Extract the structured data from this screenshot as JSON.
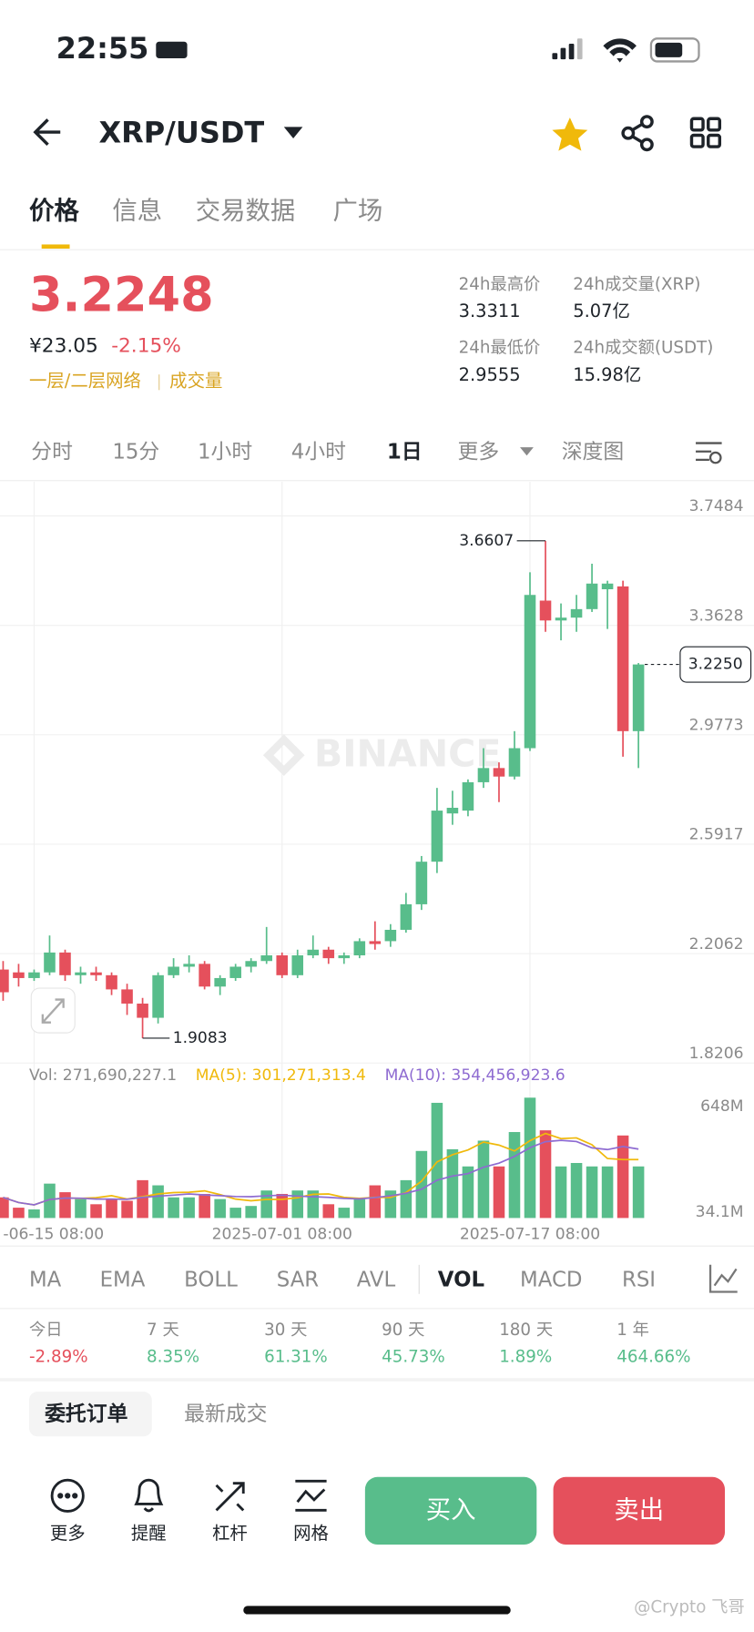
{
  "status_bar": {
    "time": "22:55"
  },
  "header": {
    "pair": "XRP/USDT"
  },
  "tabs": [
    "价格",
    "信息",
    "交易数据",
    "广场"
  ],
  "ticker": {
    "price": "3.2248",
    "cny": "¥23.05",
    "change": "-2.15%",
    "network": "一层/二层网络",
    "volume_link": "成交量"
  },
  "stats": [
    {
      "label": "24h最高价",
      "value": "3.3311"
    },
    {
      "label": "24h成交量(XRP)",
      "value": "5.07亿"
    },
    {
      "label": "24h最低价",
      "value": "2.9555"
    },
    {
      "label": "24h成交额(USDT)",
      "value": "15.98亿"
    }
  ],
  "intervals": [
    "分时",
    "15分",
    "1小时",
    "4小时",
    "1日",
    "更多",
    "深度图"
  ],
  "chart_data": [
    {
      "type": "candlestick",
      "watermark": "BINANCE",
      "categories": [
        null,
        null,
        "-06-15 08:00",
        null,
        null,
        null,
        null,
        null,
        null,
        null,
        null,
        null,
        null,
        null,
        null,
        null,
        null,
        null,
        "2025-07-01 08:00",
        null,
        null,
        null,
        null,
        null,
        null,
        null,
        null,
        null,
        null,
        null,
        null,
        null,
        null,
        null,
        "2025-07-17 08:00",
        null,
        null,
        null,
        null,
        null,
        null,
        null
      ],
      "open": [
        2.15,
        2.14,
        2.12,
        2.14,
        2.21,
        2.13,
        2.14,
        2.13,
        2.08,
        2.03,
        1.98,
        2.13,
        2.16,
        2.17,
        2.09,
        2.12,
        2.16,
        2.18,
        2.2,
        2.13,
        2.2,
        2.22,
        2.19,
        2.2,
        2.25,
        2.25,
        2.29,
        2.38,
        2.53,
        2.7,
        2.71,
        2.81,
        2.86,
        2.83,
        2.93,
        3.45,
        3.38,
        3.39,
        3.42,
        3.49,
        3.5,
        2.99
      ],
      "high": [
        2.18,
        2.17,
        2.15,
        2.27,
        2.22,
        2.16,
        2.16,
        2.14,
        2.1,
        2.05,
        2.14,
        2.19,
        2.2,
        2.18,
        2.13,
        2.17,
        2.19,
        2.3,
        2.21,
        2.22,
        2.27,
        2.23,
        2.21,
        2.26,
        2.32,
        2.31,
        2.42,
        2.55,
        2.79,
        2.78,
        2.82,
        2.93,
        2.88,
        2.99,
        3.55,
        3.6607,
        3.44,
        3.47,
        3.58,
        3.52,
        3.52,
        3.23
      ],
      "low": [
        2.04,
        2.09,
        2.11,
        2.13,
        2.11,
        2.1,
        2.11,
        2.06,
        1.99,
        1.9083,
        1.96,
        2.12,
        2.14,
        2.08,
        2.06,
        2.11,
        2.14,
        2.17,
        2.12,
        2.12,
        2.19,
        2.17,
        2.17,
        2.19,
        2.22,
        2.23,
        2.28,
        2.36,
        2.49,
        2.66,
        2.69,
        2.79,
        2.74,
        2.82,
        2.92,
        3.34,
        3.31,
        3.34,
        3.41,
        3.35,
        2.9,
        2.86
      ],
      "close": [
        2.07,
        2.12,
        2.14,
        2.21,
        2.13,
        2.14,
        2.13,
        2.08,
        2.03,
        1.98,
        2.13,
        2.16,
        2.17,
        2.09,
        2.12,
        2.16,
        2.18,
        2.2,
        2.13,
        2.2,
        2.22,
        2.19,
        2.2,
        2.25,
        2.24,
        2.29,
        2.38,
        2.53,
        2.71,
        2.72,
        2.81,
        2.86,
        2.83,
        2.93,
        3.47,
        3.38,
        3.39,
        3.42,
        3.51,
        3.51,
        2.99,
        3.225
      ],
      "up_color": "#58bd8b",
      "down_color": "#e5505c",
      "ylim": [
        1.8206,
        3.8693
      ],
      "yticks": [
        3.7484,
        3.3628,
        2.9773,
        2.5917,
        2.2062,
        1.8206
      ],
      "last_price": {
        "value": 3.225,
        "label": "3.2250"
      },
      "grid": true
    },
    {
      "type": "bar",
      "legend": [
        "Vol: 271,690,227.1",
        "MA(5): 301,271,313.4",
        "MA(10): 354,456,923.6"
      ],
      "legend_colors": [
        "#8a8a8a",
        "#f0b90b",
        "#8e6bd1"
      ],
      "values": [
        120,
        60,
        50,
        200,
        150,
        110,
        80,
        110,
        100,
        220,
        190,
        120,
        120,
        140,
        110,
        60,
        70,
        160,
        140,
        160,
        160,
        80,
        60,
        110,
        190,
        160,
        220,
        390,
        670,
        400,
        300,
        450,
        300,
        500,
        700,
        510,
        300,
        320,
        300,
        300,
        480,
        300
      ],
      "ylim": [
        0,
        720
      ],
      "yticks": [
        {
          "value": 648,
          "label": "648M"
        },
        {
          "value": 34.1,
          "label": "34.1M"
        }
      ]
    }
  ],
  "indicators": [
    "MA",
    "EMA",
    "BOLL",
    "SAR",
    "AVL",
    "VOL",
    "MACD",
    "RSI"
  ],
  "performance": [
    {
      "label": "今日",
      "value": "-2.89%"
    },
    {
      "label": "7 天",
      "value": "8.35%"
    },
    {
      "label": "30 天",
      "value": "61.31%"
    },
    {
      "label": "90 天",
      "value": "45.73%"
    },
    {
      "label": "180 天",
      "value": "1.89%"
    },
    {
      "label": "1 年",
      "value": "464.66%"
    }
  ],
  "order_tabs": [
    "委托订单",
    "最新成交"
  ],
  "actions": [
    "更多",
    "提醒",
    "杠杆",
    "网格"
  ],
  "buy": "买入",
  "sell": "卖出",
  "footer_watermark": "@Crypto 飞哥"
}
